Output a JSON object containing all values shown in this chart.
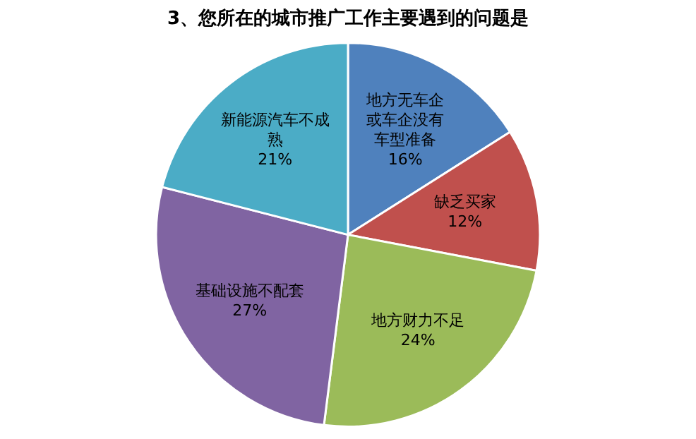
{
  "chart_data": {
    "type": "pie",
    "title": "3、您所在的城市推广工作主要遇到的问题是",
    "categories": [
      "地方无车企或车企没有车型准备",
      "缺乏买家",
      "地方财力不足",
      "基础设施不配套",
      "新能源汽车不成熟"
    ],
    "values": [
      16,
      12,
      24,
      27,
      21
    ],
    "colors": [
      "#4f81bd",
      "#c0504d",
      "#9bbb59",
      "#8064a2",
      "#4bacc6"
    ],
    "value_labels": [
      "16%",
      "12%",
      "24%",
      "27%",
      "21%"
    ],
    "legend": false
  }
}
